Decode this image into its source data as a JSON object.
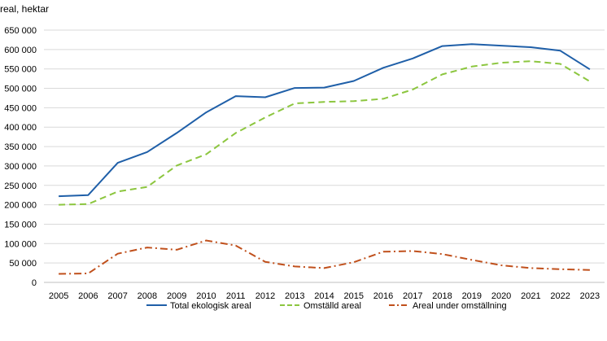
{
  "chart_data": {
    "type": "line",
    "title": "",
    "ylabel": "real, hektar",
    "xlabel": "",
    "ylim": [
      0,
      650000
    ],
    "yticks": [
      0,
      50000,
      100000,
      150000,
      200000,
      250000,
      300000,
      350000,
      400000,
      450000,
      500000,
      550000,
      600000,
      650000
    ],
    "ytick_labels": [
      "0",
      "50 000",
      "100 000",
      "150 000",
      "200 000",
      "250 000",
      "300 000",
      "350 000",
      "400 000",
      "450 000",
      "500 000",
      "550 000",
      "600 000",
      "650 000"
    ],
    "x": [
      "2005",
      "2006",
      "2007",
      "2008",
      "2009",
      "2010",
      "2011",
      "2012",
      "2013",
      "2014",
      "2015",
      "2016",
      "2017",
      "2018",
      "2019",
      "2020",
      "2021",
      "2022",
      "2023"
    ],
    "grid": true,
    "legend_position": "bottom",
    "series": [
      {
        "name": "Total ekologisk areal",
        "color": "#1f5fa8",
        "style": "solid",
        "values": [
          222000,
          225000,
          308000,
          336000,
          385000,
          438000,
          480000,
          477000,
          501000,
          502000,
          519000,
          553000,
          577000,
          609000,
          614000,
          610000,
          606000,
          597000,
          549000
        ]
      },
      {
        "name": "Omställd areal",
        "color": "#8cc63f",
        "style": "dashed",
        "values": [
          200000,
          202000,
          234000,
          246000,
          301000,
          330000,
          385000,
          425000,
          461000,
          465000,
          467000,
          473000,
          497000,
          536000,
          556000,
          566000,
          570000,
          563000,
          518000
        ]
      },
      {
        "name": "Areal under omställning",
        "color": "#c0501c",
        "style": "dashdot",
        "values": [
          22000,
          23000,
          74000,
          90000,
          84000,
          108000,
          95000,
          53000,
          41000,
          37000,
          52000,
          79000,
          81000,
          73000,
          58000,
          44000,
          37000,
          34000,
          32000
        ]
      }
    ]
  }
}
